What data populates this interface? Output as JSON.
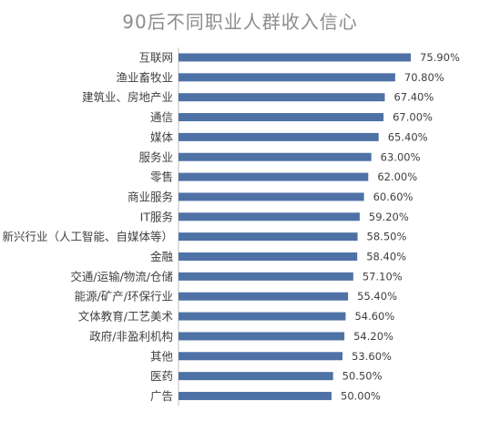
{
  "chart_data": {
    "type": "bar",
    "orientation": "horizontal",
    "title": "90后不同职业人群收入信心",
    "categories": [
      "互联网",
      "渔业畜牧业",
      "建筑业、房地产业",
      "通信",
      "媒体",
      "服务业",
      "零售",
      "商业服务",
      "IT服务",
      "新兴行业（人工智能、自媒体等）",
      "金融",
      "交通/运输/物流/仓储",
      "能源/矿产/环保行业",
      "文体教育/工艺美术",
      "政府/非盈利机构",
      "其他",
      "医药",
      "广告"
    ],
    "values": [
      75.9,
      70.8,
      67.4,
      67.0,
      65.4,
      63.0,
      62.0,
      60.6,
      59.2,
      58.5,
      58.4,
      57.1,
      55.4,
      54.6,
      54.2,
      53.6,
      50.5,
      50.0
    ],
    "value_labels": [
      "75.90%",
      "70.80%",
      "67.40%",
      "67.00%",
      "65.40%",
      "63.00%",
      "62.00%",
      "60.60%",
      "59.20%",
      "58.50%",
      "58.40%",
      "57.10%",
      "55.40%",
      "54.60%",
      "54.20%",
      "53.60%",
      "50.50%",
      "50.00%"
    ],
    "unit": "%",
    "xlim": [
      0,
      100
    ],
    "grid": false,
    "legend": "none",
    "bar_color": "#4f72a6"
  }
}
